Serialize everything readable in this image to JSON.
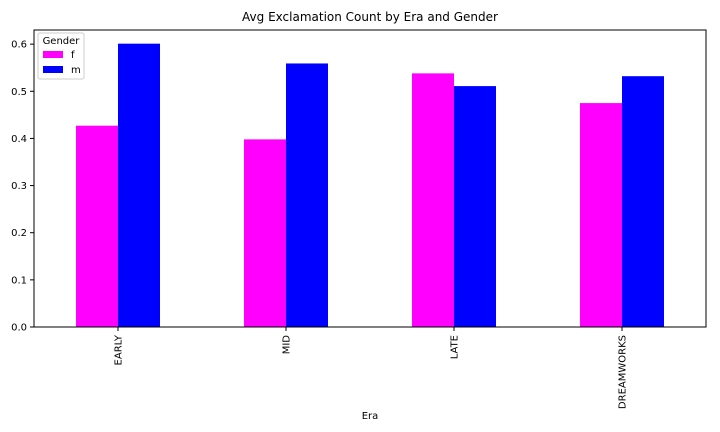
{
  "chart_data": {
    "type": "bar",
    "title": "Avg Exclamation Count by Era and Gender",
    "xlabel": "Era",
    "ylabel": "",
    "categories": [
      "EARLY",
      "MID",
      "LATE",
      "DREAMWORKS"
    ],
    "series": [
      {
        "name": "f",
        "color": "#ff00ff",
        "values": [
          0.427,
          0.398,
          0.538,
          0.475
        ]
      },
      {
        "name": "m",
        "color": "#0000ff",
        "values": [
          0.601,
          0.559,
          0.511,
          0.532
        ]
      }
    ],
    "ylim": [
      0,
      0.63
    ],
    "yticks": [
      0.0,
      0.1,
      0.2,
      0.3,
      0.4,
      0.5,
      0.6
    ],
    "ytick_labels": [
      "0.0",
      "0.1",
      "0.2",
      "0.3",
      "0.4",
      "0.5",
      "0.6"
    ],
    "grid": false,
    "legend": {
      "title": "Gender",
      "placement": "top-left"
    }
  }
}
